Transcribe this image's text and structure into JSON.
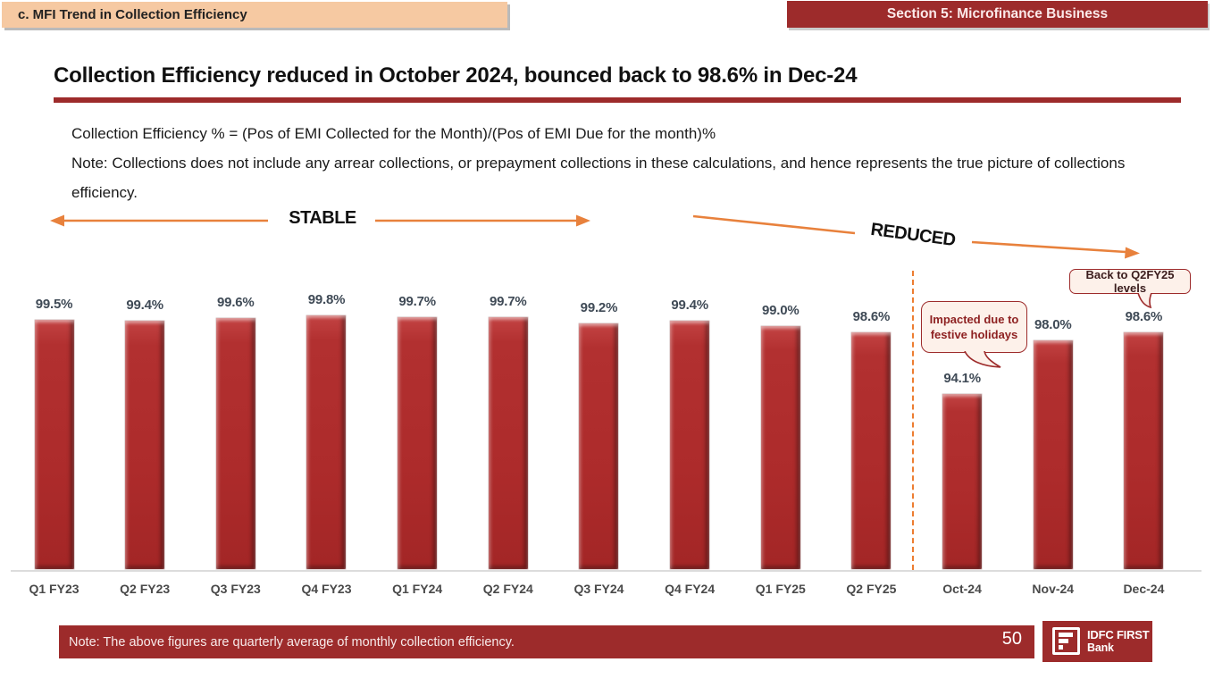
{
  "header": {
    "tab_label": "c. MFI Trend in Collection Efficiency",
    "section_label": "Section 5: Microfinance Business"
  },
  "main": {
    "title": "Collection Efficiency reduced in October 2024, bounced back to 98.6% in Dec-24",
    "formula_line": "Collection Efficiency % = (Pos of EMI Collected for the Month)/(Pos of EMI Due for the month)%",
    "note_line": "Note: Collections does not include any arrear collections, or prepayment collections in these calculations, and hence represents the true picture of collections efficiency."
  },
  "annotations": {
    "stable_label": "STABLE",
    "reduced_label": "REDUCED",
    "oct_callout_line1": "Impacted due to",
    "oct_callout_line2": "festive holidays",
    "dec_callout": "Back to Q2FY25 levels"
  },
  "chart_data": {
    "type": "bar",
    "categories": [
      "Q1 FY23",
      "Q2 FY23",
      "Q3 FY23",
      "Q4 FY23",
      "Q1 FY24",
      "Q2 FY24",
      "Q3 FY24",
      "Q4 FY24",
      "Q1 FY25",
      "Q2 FY25",
      "Oct-24",
      "Nov-24",
      "Dec-24"
    ],
    "values": [
      99.5,
      99.4,
      99.6,
      99.8,
      99.7,
      99.7,
      99.2,
      99.4,
      99.0,
      98.6,
      94.1,
      98.0,
      98.6
    ],
    "value_labels": [
      "99.5%",
      "99.4%",
      "99.6%",
      "99.8%",
      "99.7%",
      "99.7%",
      "99.2%",
      "99.4%",
      "99.0%",
      "98.6%",
      "94.1%",
      "98.0%",
      "98.6%"
    ],
    "title": "",
    "xlabel": "",
    "ylabel": "",
    "ylim": [
      81,
      101
    ],
    "grid": false,
    "legend_position": "none",
    "bar_color": "#b02b2b",
    "separator_after_category": "Q2 FY25"
  },
  "footer": {
    "note": "Note: The above figures are quarterly average of monthly collection efficiency.",
    "page_number": "50",
    "logo_line1": "IDFC FIRST",
    "logo_line2": "Bank"
  },
  "colors": {
    "maroon": "#9d2b2b",
    "bar_red": "#b02b2b",
    "peach_banner": "#f6c9a2",
    "orange_accent": "#e8813c",
    "value_label_gray": "#3f4a56"
  }
}
